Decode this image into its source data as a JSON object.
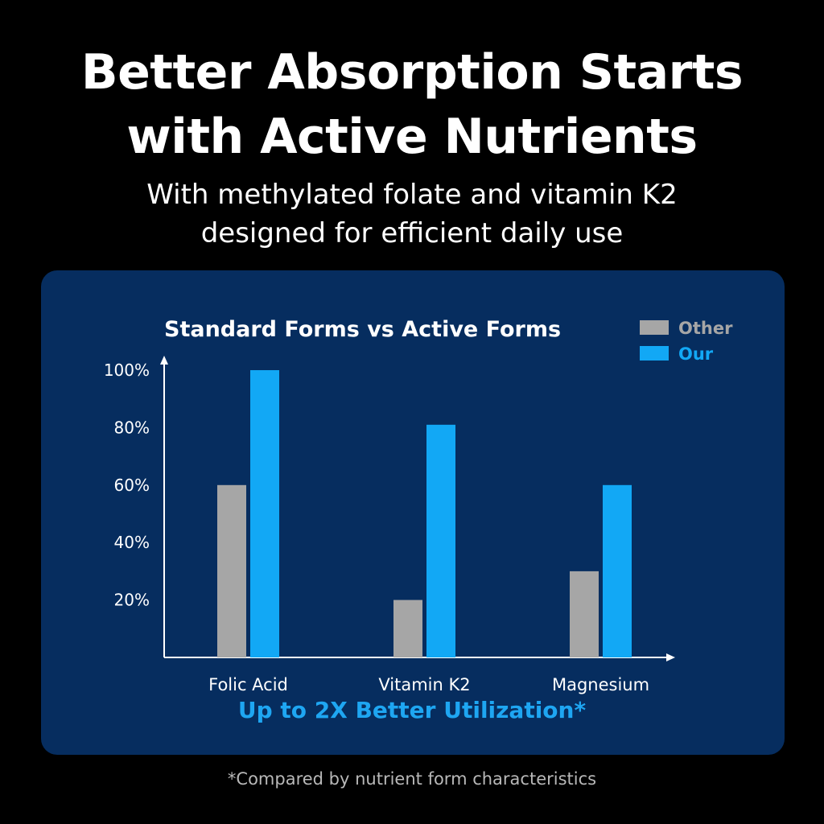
{
  "headline": {
    "line1": "Better Absorption Starts",
    "line2": "with Active Nutrients"
  },
  "subhead": {
    "line1": "With methylated folate and vitamin K2",
    "line2": "designed for efficient daily use"
  },
  "tagline": "Up to 2X Better Utilization*",
  "footnote": "*Compared by nutrient form characteristics",
  "colors": {
    "background": "#000000",
    "panel": "#062d5f",
    "other": "#a6a6a6",
    "our": "#12a8f5",
    "tagline": "#1ea6f2",
    "axis": "#ffffff"
  },
  "chart_data": {
    "type": "bar",
    "title": "Standard Forms vs Active Forms",
    "categories": [
      "Folic Acid",
      "Vitamin K2",
      "Magnesium"
    ],
    "series": [
      {
        "name": "Other",
        "color": "#a6a6a6",
        "values": [
          60,
          20,
          30
        ]
      },
      {
        "name": "Our",
        "color": "#12a8f5",
        "values": [
          100,
          81,
          60
        ]
      }
    ],
    "yticks": [
      "20%",
      "40%",
      "60%",
      "80%",
      "100%"
    ],
    "ytick_values": [
      20,
      40,
      60,
      80,
      100
    ],
    "ylim": [
      0,
      100
    ],
    "xlabel": "",
    "ylabel": "",
    "grid": false,
    "legend_position": "top-right"
  }
}
